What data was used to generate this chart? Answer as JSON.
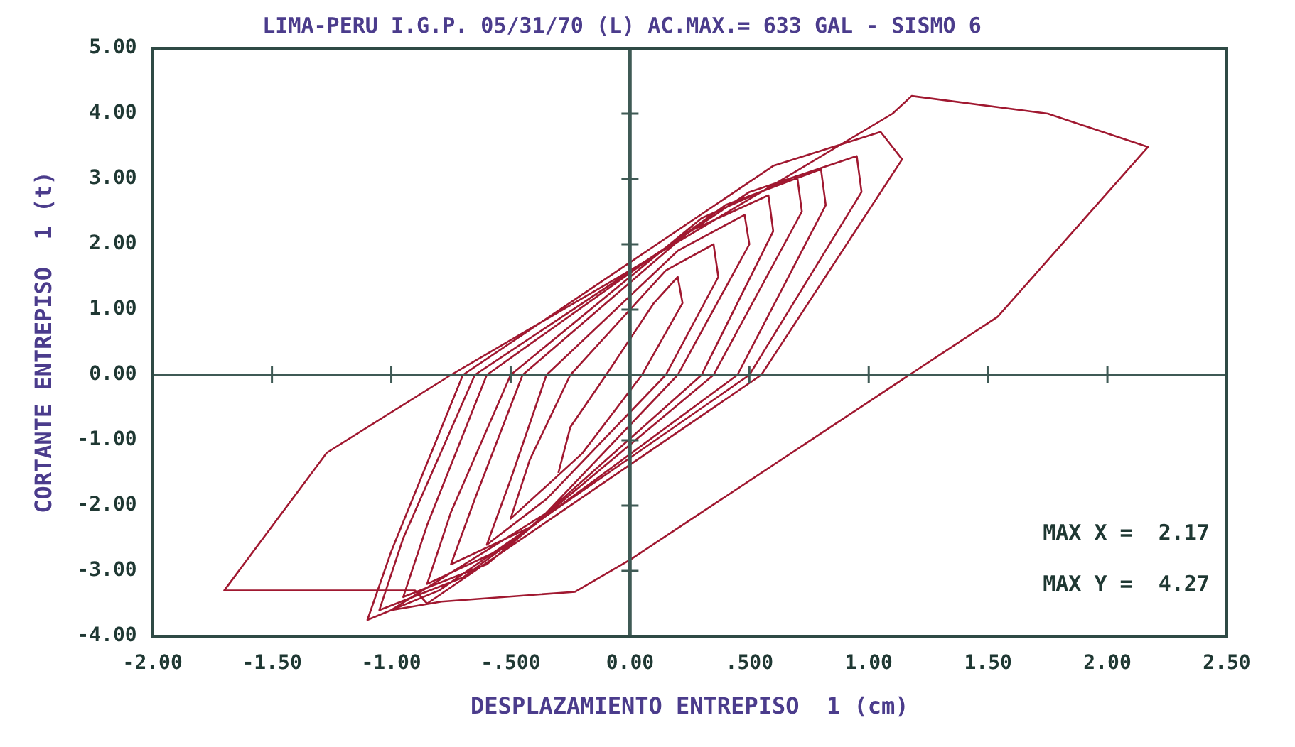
{
  "chart_data": {
    "type": "line",
    "title": "LIMA-PERU I.G.P. 05/31/70 (L) AC.MAX.= 633 GAL - SISMO 6",
    "xlabel": "DESPLAZAMIENTO ENTREPISO  1 (cm)",
    "ylabel": "CORTANTE ENTREPISO  1 (t)",
    "annotations": [
      "MAX X =  2.17",
      "MAX Y =  4.27"
    ],
    "xlim": [
      -2,
      2.5
    ],
    "xticks": [
      {
        "value": -2,
        "label": "-2.00"
      },
      {
        "value": -1.5,
        "label": "-1.50"
      },
      {
        "value": -1,
        "label": "-1.00"
      },
      {
        "value": -0.5,
        "label": "-.500"
      },
      {
        "value": 0,
        "label": "0.00"
      },
      {
        "value": 0.5,
        "label": ".500"
      },
      {
        "value": 1,
        "label": "1.00"
      },
      {
        "value": 1.5,
        "label": "1.50"
      },
      {
        "value": 2,
        "label": "2.00"
      },
      {
        "value": 2.5,
        "label": "2.50"
      }
    ],
    "ylim": [
      -4,
      5
    ],
    "yticks": [
      {
        "value": -4,
        "label": "-4.00"
      },
      {
        "value": -3,
        "label": "-3.00"
      },
      {
        "value": -2,
        "label": "-2.00"
      },
      {
        "value": -1,
        "label": "-1.00"
      },
      {
        "value": 0,
        "label": "0.00"
      },
      {
        "value": 1,
        "label": "1.00"
      },
      {
        "value": 2,
        "label": "2.00"
      },
      {
        "value": 3,
        "label": "3.00"
      },
      {
        "value": 4,
        "label": "4.00"
      },
      {
        "value": 5,
        "label": "5.00"
      }
    ],
    "ref_lines": [
      {
        "axis": "x",
        "value": 0,
        "color": "#3f5a55"
      },
      {
        "axis": "y",
        "value": 0,
        "color": "#3f5a55"
      }
    ],
    "grid": false,
    "legend": false,
    "marker": "none",
    "line_style": "solid",
    "series": [
      {
        "color": "#a01830",
        "x": [
          -0.3,
          -0.25,
          -0.1,
          0.1,
          0.2,
          0.22,
          0.05,
          -0.2,
          -0.5,
          -0.42,
          -0.25,
          0.15,
          0.35,
          0.37,
          0.15,
          -0.35,
          -0.6,
          -0.5,
          -0.35,
          0.2,
          0.48,
          0.5,
          0.2,
          -0.4,
          -0.75,
          -0.65,
          -0.45,
          0.25,
          0.58,
          0.6,
          0.3,
          -0.5,
          -0.85,
          -0.75,
          -0.5,
          0.3,
          0.7,
          0.72,
          0.35,
          -0.6,
          -0.95,
          -0.85,
          -0.6,
          0.4,
          0.8,
          0.82,
          0.45,
          -0.7,
          -1.05,
          -0.95,
          -0.65,
          0.5,
          0.95,
          0.97,
          0.5,
          -0.8,
          -1.1,
          -1.0,
          -0.7,
          0.6,
          1.05,
          1.14,
          0.55,
          -0.85,
          -0.9,
          -1.7,
          -1.27,
          -0.75,
          0.0,
          1.1,
          1.18,
          1.75,
          2.17,
          1.54,
          1.17,
          0.0,
          -0.23,
          -0.79,
          -1.0,
          -0.3
        ],
        "values": [
          -1.5,
          -0.8,
          0,
          1.1,
          1.5,
          1.1,
          0,
          -1.2,
          -2.2,
          -1.3,
          0,
          1.6,
          2.0,
          1.5,
          0,
          -1.9,
          -2.6,
          -1.6,
          0,
          1.9,
          2.45,
          2.0,
          0,
          -2.3,
          -2.9,
          -1.9,
          0,
          2.2,
          2.75,
          2.2,
          0,
          -2.6,
          -3.2,
          -2.1,
          0,
          2.4,
          3.05,
          2.5,
          0,
          -2.9,
          -3.4,
          -2.3,
          0,
          2.6,
          3.15,
          2.6,
          0,
          -3.1,
          -3.6,
          -2.5,
          0,
          2.8,
          3.35,
          2.8,
          0,
          -3.3,
          -3.75,
          -2.7,
          0,
          3.2,
          3.72,
          3.3,
          0,
          -3.5,
          -3.3,
          -3.3,
          -1.19,
          0,
          1.6,
          4.0,
          4.27,
          4.0,
          3.49,
          0.89,
          0,
          -2.83,
          -3.32,
          -3.47,
          -3.6,
          -2.0
        ]
      }
    ]
  }
}
